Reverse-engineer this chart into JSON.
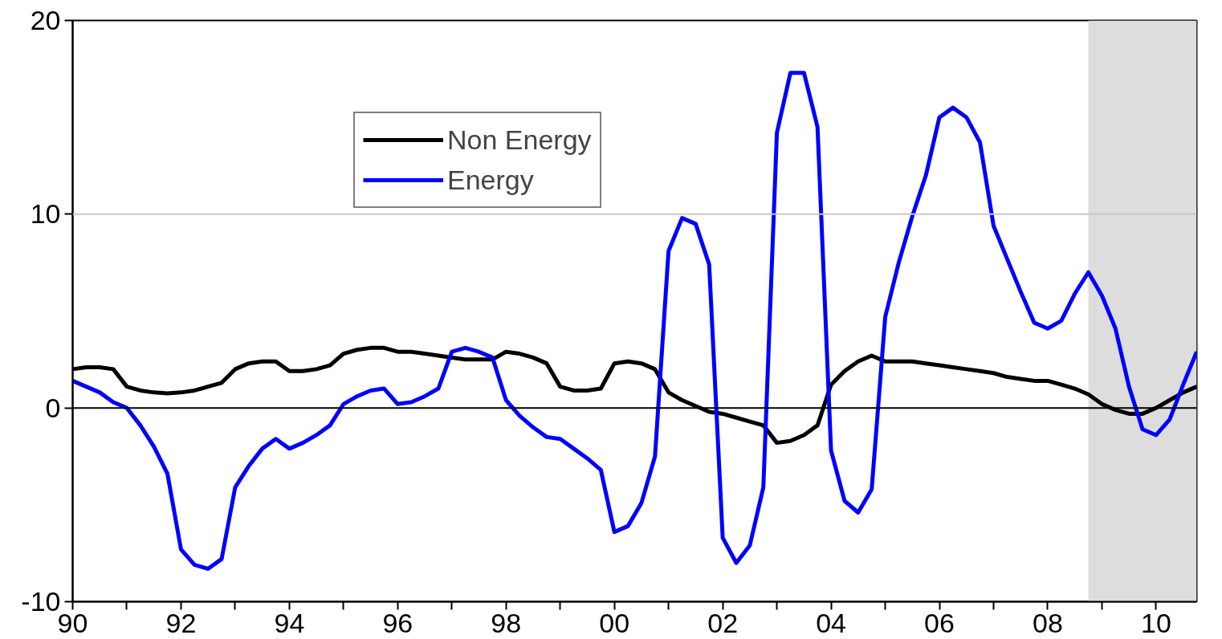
{
  "chart_data": {
    "type": "line",
    "x": [
      1990,
      1990.25,
      1990.5,
      1990.75,
      1991,
      1991.25,
      1991.5,
      1991.75,
      1992,
      1992.25,
      1992.5,
      1992.75,
      1993,
      1993.25,
      1993.5,
      1993.75,
      1994,
      1994.25,
      1994.5,
      1994.75,
      1995,
      1995.25,
      1995.5,
      1995.75,
      1996,
      1996.25,
      1996.5,
      1996.75,
      1997,
      1997.25,
      1997.5,
      1997.75,
      1998,
      1998.25,
      1998.5,
      1998.75,
      1999,
      1999.25,
      1999.5,
      1999.75,
      2000,
      2000.25,
      2000.5,
      2000.75,
      2001,
      2001.25,
      2001.5,
      2001.75,
      2002,
      2002.25,
      2002.5,
      2002.75,
      2003,
      2003.25,
      2003.5,
      2003.75,
      2004,
      2004.25,
      2004.5,
      2004.75,
      2005,
      2005.25,
      2005.5,
      2005.75,
      2006,
      2006.25,
      2006.5,
      2006.75,
      2007,
      2007.25,
      2007.5,
      2007.75,
      2008,
      2008.25,
      2008.5,
      2008.75,
      2009,
      2009.25,
      2009.5,
      2009.75,
      2010,
      2010.25,
      2010.5,
      2010.75
    ],
    "series": [
      {
        "name": "Non Energy",
        "color": "#000000",
        "values": [
          2.0,
          2.1,
          2.1,
          2.0,
          1.1,
          0.9,
          0.8,
          0.75,
          0.8,
          0.9,
          1.1,
          1.3,
          2.0,
          2.3,
          2.4,
          2.4,
          1.9,
          1.9,
          2.0,
          2.2,
          2.8,
          3.0,
          3.1,
          3.1,
          2.9,
          2.9,
          2.8,
          2.7,
          2.6,
          2.5,
          2.5,
          2.5,
          2.9,
          2.8,
          2.6,
          2.3,
          1.1,
          0.9,
          0.9,
          1.0,
          2.3,
          2.4,
          2.3,
          2.0,
          0.8,
          0.4,
          0.1,
          -0.2,
          -0.3,
          -0.5,
          -0.7,
          -0.9,
          -1.8,
          -1.7,
          -1.4,
          -0.9,
          1.2,
          1.9,
          2.4,
          2.7,
          2.4,
          2.4,
          2.4,
          2.3,
          2.2,
          2.1,
          2.0,
          1.9,
          1.8,
          1.6,
          1.5,
          1.4,
          1.4,
          1.2,
          1.0,
          0.7,
          0.2,
          -0.1,
          -0.3,
          -0.3,
          0.0,
          0.4,
          0.8,
          1.1
        ]
      },
      {
        "name": "Energy",
        "color": "#0000ff",
        "values": [
          1.4,
          1.1,
          0.8,
          0.3,
          0.0,
          -0.9,
          -2.0,
          -3.4,
          -7.3,
          -8.1,
          -8.3,
          -7.8,
          -4.1,
          -3.0,
          -2.1,
          -1.6,
          -2.1,
          -1.8,
          -1.4,
          -0.9,
          0.2,
          0.6,
          0.9,
          1.0,
          0.2,
          0.3,
          0.6,
          1.0,
          2.9,
          3.1,
          2.9,
          2.6,
          0.4,
          -0.4,
          -1.0,
          -1.5,
          -1.6,
          -2.1,
          -2.6,
          -3.2,
          -6.4,
          -6.1,
          -4.9,
          -2.5,
          8.1,
          9.8,
          9.5,
          7.4,
          -6.7,
          -8.0,
          -7.1,
          -4.1,
          14.2,
          17.3,
          17.3,
          14.5,
          -2.2,
          -4.8,
          -5.4,
          -4.2,
          4.7,
          7.5,
          9.9,
          12.0,
          15.0,
          15.5,
          15.0,
          13.7,
          9.4,
          7.7,
          6.0,
          4.4,
          4.1,
          4.5,
          5.9,
          7.0,
          5.8,
          4.1,
          1.1,
          -1.1,
          -1.4,
          -0.6,
          1.2,
          2.9
        ]
      }
    ],
    "xlim": [
      1990,
      2010.75
    ],
    "xticks": [
      {
        "value": 1990,
        "label": "90"
      },
      {
        "value": 1991,
        "label": null
      },
      {
        "value": 1992,
        "label": "92"
      },
      {
        "value": 1993,
        "label": null
      },
      {
        "value": 1994,
        "label": "94"
      },
      {
        "value": 1995,
        "label": null
      },
      {
        "value": 1996,
        "label": "96"
      },
      {
        "value": 1997,
        "label": null
      },
      {
        "value": 1998,
        "label": "98"
      },
      {
        "value": 1999,
        "label": null
      },
      {
        "value": 2000,
        "label": "00"
      },
      {
        "value": 2001,
        "label": null
      },
      {
        "value": 2002,
        "label": "02"
      },
      {
        "value": 2003,
        "label": null
      },
      {
        "value": 2004,
        "label": "04"
      },
      {
        "value": 2005,
        "label": null
      },
      {
        "value": 2006,
        "label": "06"
      },
      {
        "value": 2007,
        "label": null
      },
      {
        "value": 2008,
        "label": "08"
      },
      {
        "value": 2009,
        "label": null
      },
      {
        "value": 2010,
        "label": "10"
      }
    ],
    "ylim": [
      -10,
      20
    ],
    "yticks": [
      -10,
      0,
      10,
      20
    ],
    "grid": false,
    "legend": "top",
    "line_style": "solid",
    "ref_lines": [
      {
        "axis": "y",
        "value": 0,
        "color": "#000000"
      },
      {
        "axis": "y",
        "value": 10,
        "color": "#c8c8c8"
      }
    ],
    "bands": [
      {
        "axis": "x",
        "from": 2008.75,
        "to": 2010.75,
        "color": "#dddddd"
      }
    ]
  }
}
